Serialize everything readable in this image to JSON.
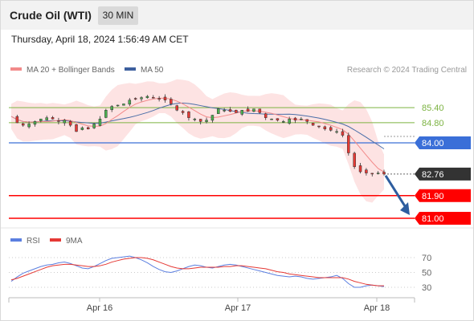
{
  "header": {
    "title": "Crude Oil (WTI)",
    "timeframe": "30 MIN"
  },
  "timestamp": "Thursday, April 18, 2024 1:56:49 AM CET",
  "legend": {
    "bollinger": "MA 20 + Bollinger Bands",
    "ma50": "MA 50"
  },
  "credit": "Research © 2024 Trading Central",
  "rsi_legend": {
    "rsi": "RSI",
    "ma9": "9MA"
  },
  "colors": {
    "ma20": "#f28a8a",
    "bollinger_band": "#fde0e0",
    "ma50": "#4a6ea8",
    "candle_up": "#4caf50",
    "candle_down": "#e53935",
    "level_green": "#7cb342",
    "level_blue": "#3a6fd8",
    "level_red": "#ff0000",
    "last_price_badge": "#333333",
    "arrow": "#2d5d9f",
    "rsi_line": "#5b7fe0",
    "rsi_ma": "#e53935"
  },
  "chart_data": [
    {
      "type": "candlestick",
      "x_ticks": [
        "Apr 16",
        "Apr 17",
        "Apr 18"
      ],
      "price_ylim": [
        80.8,
        86.6
      ],
      "series": [
        {
          "name": "MA 20 + Bollinger Bands"
        },
        {
          "name": "MA 50"
        }
      ],
      "close_path": [
        85.05,
        84.8,
        84.7,
        84.75,
        84.85,
        84.95,
        85.0,
        84.95,
        84.85,
        84.9,
        84.7,
        84.45,
        84.6,
        84.55,
        84.75,
        84.95,
        85.3,
        85.45,
        85.5,
        85.55,
        85.7,
        85.75,
        85.8,
        85.85,
        85.8,
        85.75,
        85.7,
        85.55,
        85.3,
        85.2,
        85.0,
        84.95,
        84.85,
        84.9,
        85.1,
        85.35,
        85.3,
        85.25,
        85.2,
        85.3,
        85.25,
        85.35,
        85.2,
        85.0,
        84.95,
        84.9,
        84.85,
        84.95,
        84.9,
        84.95,
        84.85,
        84.7,
        84.65,
        84.55,
        84.5,
        84.45,
        84.3,
        83.6,
        83.05,
        82.85,
        82.8,
        82.78,
        82.8,
        82.76
      ],
      "levels": [
        {
          "value": 85.4,
          "label": "85.40",
          "kind": "resistance"
        },
        {
          "value": 84.8,
          "label": "84.80",
          "kind": "resistance"
        },
        {
          "value": 84.0,
          "label": "84.00",
          "kind": "pivot"
        },
        {
          "value": 82.76,
          "label": "82.76",
          "kind": "last_price"
        },
        {
          "value": 81.9,
          "label": "81.90",
          "kind": "target"
        },
        {
          "value": 81.0,
          "label": "81.00",
          "kind": "target"
        }
      ],
      "forecast_arrow": {
        "from": 82.76,
        "to": 81.0
      }
    },
    {
      "type": "line",
      "name": "RSI",
      "ylim": [
        20,
        80
      ],
      "y_ticks": [
        70,
        50,
        30
      ],
      "rsi": [
        38,
        44,
        49,
        52,
        55,
        58,
        60,
        61,
        63,
        64,
        62,
        59,
        56,
        55,
        58,
        62,
        66,
        69,
        70,
        71,
        72,
        70,
        67,
        63,
        58,
        54,
        51,
        50,
        52,
        55,
        58,
        60,
        59,
        57,
        56,
        58,
        60,
        61,
        60,
        58,
        56,
        54,
        52,
        50,
        48,
        46,
        45,
        44,
        45,
        44,
        42,
        41,
        42,
        43,
        44,
        46,
        42,
        35,
        30,
        30,
        32,
        33,
        32,
        31
      ],
      "ma9": [
        40,
        42,
        45,
        48,
        51,
        54,
        57,
        59,
        60,
        61,
        61,
        60,
        59,
        58,
        58,
        59,
        61,
        64,
        66,
        68,
        69,
        70,
        70,
        69,
        67,
        64,
        61,
        58,
        56,
        55,
        55,
        56,
        57,
        57,
        57,
        57,
        58,
        58,
        59,
        59,
        58,
        57,
        56,
        55,
        53,
        51,
        50,
        48,
        47,
        46,
        45,
        44,
        43,
        43,
        43,
        43,
        43,
        41,
        38,
        36,
        34,
        33,
        32,
        32
      ]
    }
  ]
}
